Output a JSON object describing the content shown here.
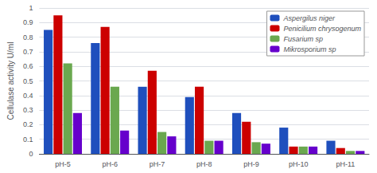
{
  "chart_data": {
    "type": "bar",
    "categories": [
      "pH-5",
      "pH-6",
      "pH-7",
      "pH-8",
      "pH-9",
      "pH-10",
      "pH-11"
    ],
    "series": [
      {
        "name": "Aspergilus niger",
        "color": "#1F4FBD",
        "values": [
          0.85,
          0.76,
          0.46,
          0.39,
          0.28,
          0.18,
          0.09
        ]
      },
      {
        "name": "Penicilium chrysogenum",
        "color": "#CC0000",
        "values": [
          0.95,
          0.87,
          0.57,
          0.46,
          0.22,
          0.05,
          0.04
        ]
      },
      {
        "name": "Fusarium sp",
        "color": "#6AA84F",
        "values": [
          0.62,
          0.46,
          0.15,
          0.09,
          0.08,
          0.05,
          0.02
        ]
      },
      {
        "name": "Mikrosporium sp",
        "color": "#6600CC",
        "values": [
          0.28,
          0.16,
          0.12,
          0.09,
          0.07,
          0.05,
          0.02
        ]
      }
    ],
    "ylabel": "Cellulase activity U/ml",
    "ylim": [
      0,
      1.0
    ],
    "yticks": [
      0,
      0.1,
      0.2,
      0.3,
      0.4,
      0.5,
      0.6,
      0.7,
      0.8,
      0.9,
      1
    ],
    "grid": true,
    "legend": "upper right"
  }
}
